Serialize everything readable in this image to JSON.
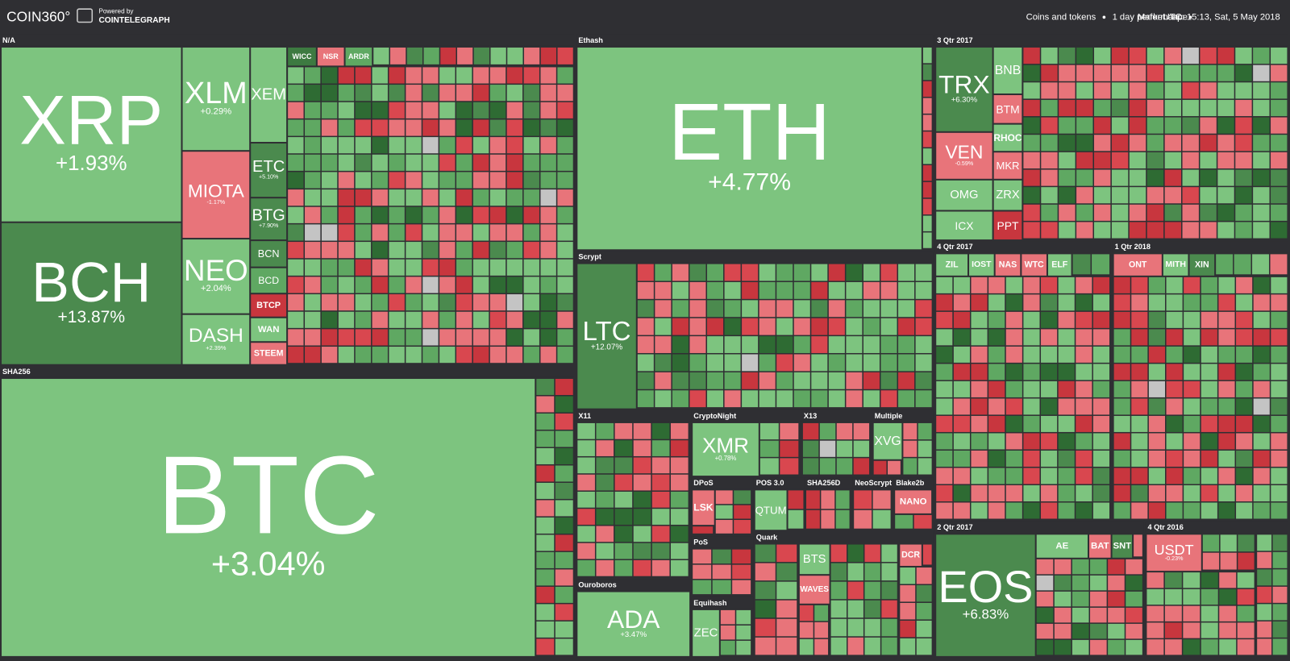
{
  "header": {
    "logo": "COIN360°",
    "powered_by": "Powered by",
    "partner": "COINTELEGRAPH",
    "filters": [
      "Coins and tokens",
      "1 day performance",
      "Market cap",
      "UTC: 15:13, Sat, 5 May 2018"
    ]
  },
  "groups": [
    {
      "name": "N/A",
      "tiles": [
        {
          "symbol": "XRP",
          "change": "+1.93%",
          "color": "#7dc47f"
        },
        {
          "symbol": "BCH",
          "change": "+13.87%",
          "color": "#4b8a4e"
        },
        {
          "symbol": "XLM",
          "change": "+0.29%",
          "color": "#7dc47f"
        },
        {
          "symbol": "MIOTA",
          "change": "-1.17%",
          "color": "#e8747a"
        },
        {
          "symbol": "NEO",
          "change": "+2.04%",
          "color": "#7dc47f"
        },
        {
          "symbol": "DASH",
          "change": "+2.39%",
          "color": "#7dc47f"
        },
        {
          "symbol": "XEM",
          "color": "#7dc47f"
        },
        {
          "symbol": "ETC",
          "change": "+5.10%",
          "color": "#4b8a4e"
        },
        {
          "symbol": "BTG",
          "change": "+7.90%",
          "color": "#4b8a4e"
        },
        {
          "symbol": "BCN",
          "color": "#4b8a4e"
        },
        {
          "symbol": "BCD",
          "color": "#5fa862"
        },
        {
          "symbol": "BTCP",
          "color": "#c8363e"
        },
        {
          "symbol": "WAN",
          "color": "#7dc47f"
        },
        {
          "symbol": "STEEM",
          "color": "#e8747a"
        },
        {
          "symbol": "WICC",
          "color": "#3d7a41"
        },
        {
          "symbol": "NSR",
          "color": "#e8747a"
        },
        {
          "symbol": "ARDR",
          "color": "#5fa862"
        }
      ]
    },
    {
      "name": "SHA256",
      "tiles": [
        {
          "symbol": "BTC",
          "change": "+3.04%",
          "color": "#7dc47f"
        }
      ]
    },
    {
      "name": "Ethash",
      "tiles": [
        {
          "symbol": "ETH",
          "change": "+4.77%",
          "color": "#7dc47f"
        }
      ]
    },
    {
      "name": "Scrypt",
      "tiles": [
        {
          "symbol": "LTC",
          "change": "+12.07%",
          "color": "#4b8a4e"
        }
      ]
    },
    {
      "name": "X11",
      "tiles": []
    },
    {
      "name": "Ouroboros",
      "tiles": [
        {
          "symbol": "ADA",
          "change": "+3.47%",
          "color": "#7dc47f"
        }
      ]
    },
    {
      "name": "CryptoNight",
      "tiles": [
        {
          "symbol": "XMR",
          "change": "+0.78%",
          "color": "#7dc47f"
        }
      ]
    },
    {
      "name": "X13",
      "tiles": []
    },
    {
      "name": "Multiple",
      "tiles": [
        {
          "symbol": "XVG",
          "color": "#7dc47f"
        }
      ]
    },
    {
      "name": "DPoS",
      "tiles": [
        {
          "symbol": "LSK",
          "color": "#e8747a"
        }
      ]
    },
    {
      "name": "POS 3.0",
      "tiles": [
        {
          "symbol": "QTUM",
          "color": "#7dc47f"
        }
      ]
    },
    {
      "name": "SHA256D",
      "tiles": []
    },
    {
      "name": "NeoScrypt",
      "tiles": []
    },
    {
      "name": "Blake2b",
      "tiles": [
        {
          "symbol": "NANO",
          "color": "#e8747a"
        }
      ]
    },
    {
      "name": "PoS",
      "tiles": []
    },
    {
      "name": "Equihash",
      "tiles": [
        {
          "symbol": "ZEC",
          "color": "#7dc47f"
        }
      ]
    },
    {
      "name": "Quark",
      "tiles": [
        {
          "symbol": "BTS",
          "color": "#7dc47f"
        },
        {
          "symbol": "WAVES",
          "color": "#e8747a"
        },
        {
          "symbol": "DCR",
          "color": "#e8747a"
        }
      ]
    },
    {
      "name": "3 Qtr 2017",
      "tiles": [
        {
          "symbol": "TRX",
          "change": "+6.30%",
          "color": "#4b8a4e"
        },
        {
          "symbol": "VEN",
          "change": "-0.59%",
          "color": "#e8747a"
        },
        {
          "symbol": "OMG",
          "color": "#7dc47f"
        },
        {
          "symbol": "ICX",
          "color": "#7dc47f"
        },
        {
          "symbol": "BNB",
          "color": "#7dc47f"
        },
        {
          "symbol": "BTM",
          "color": "#e8747a"
        },
        {
          "symbol": "RHOC",
          "color": "#7dc47f"
        },
        {
          "symbol": "MKR",
          "color": "#e8747a"
        },
        {
          "symbol": "ZRX",
          "color": "#7dc47f"
        },
        {
          "symbol": "PPT",
          "color": "#c8363e"
        }
      ]
    },
    {
      "name": "4 Qtr 2017",
      "tiles": [
        {
          "symbol": "ZIL",
          "color": "#7dc47f"
        },
        {
          "symbol": "IOST",
          "color": "#7dc47f"
        },
        {
          "symbol": "NAS",
          "color": "#e8747a"
        },
        {
          "symbol": "WTC",
          "color": "#e8747a"
        },
        {
          "symbol": "ELF",
          "color": "#7dc47f"
        }
      ]
    },
    {
      "name": "1 Qtr 2018",
      "tiles": [
        {
          "symbol": "ONT",
          "color": "#e8747a"
        },
        {
          "symbol": "MITH",
          "color": "#7dc47f"
        },
        {
          "symbol": "XIN",
          "color": "#4b8a4e"
        }
      ]
    },
    {
      "name": "2 Qtr 2017",
      "tiles": [
        {
          "symbol": "EOS",
          "change": "+6.83%",
          "color": "#4b8a4e"
        },
        {
          "symbol": "AE",
          "color": "#7dc47f"
        },
        {
          "symbol": "BAT",
          "color": "#e8747a"
        },
        {
          "symbol": "SNT",
          "color": "#4b8a4e"
        }
      ]
    },
    {
      "name": "4 Qtr 2016",
      "tiles": [
        {
          "symbol": "USDT",
          "change": "-0.23%",
          "color": "#e8747a"
        }
      ]
    }
  ]
}
